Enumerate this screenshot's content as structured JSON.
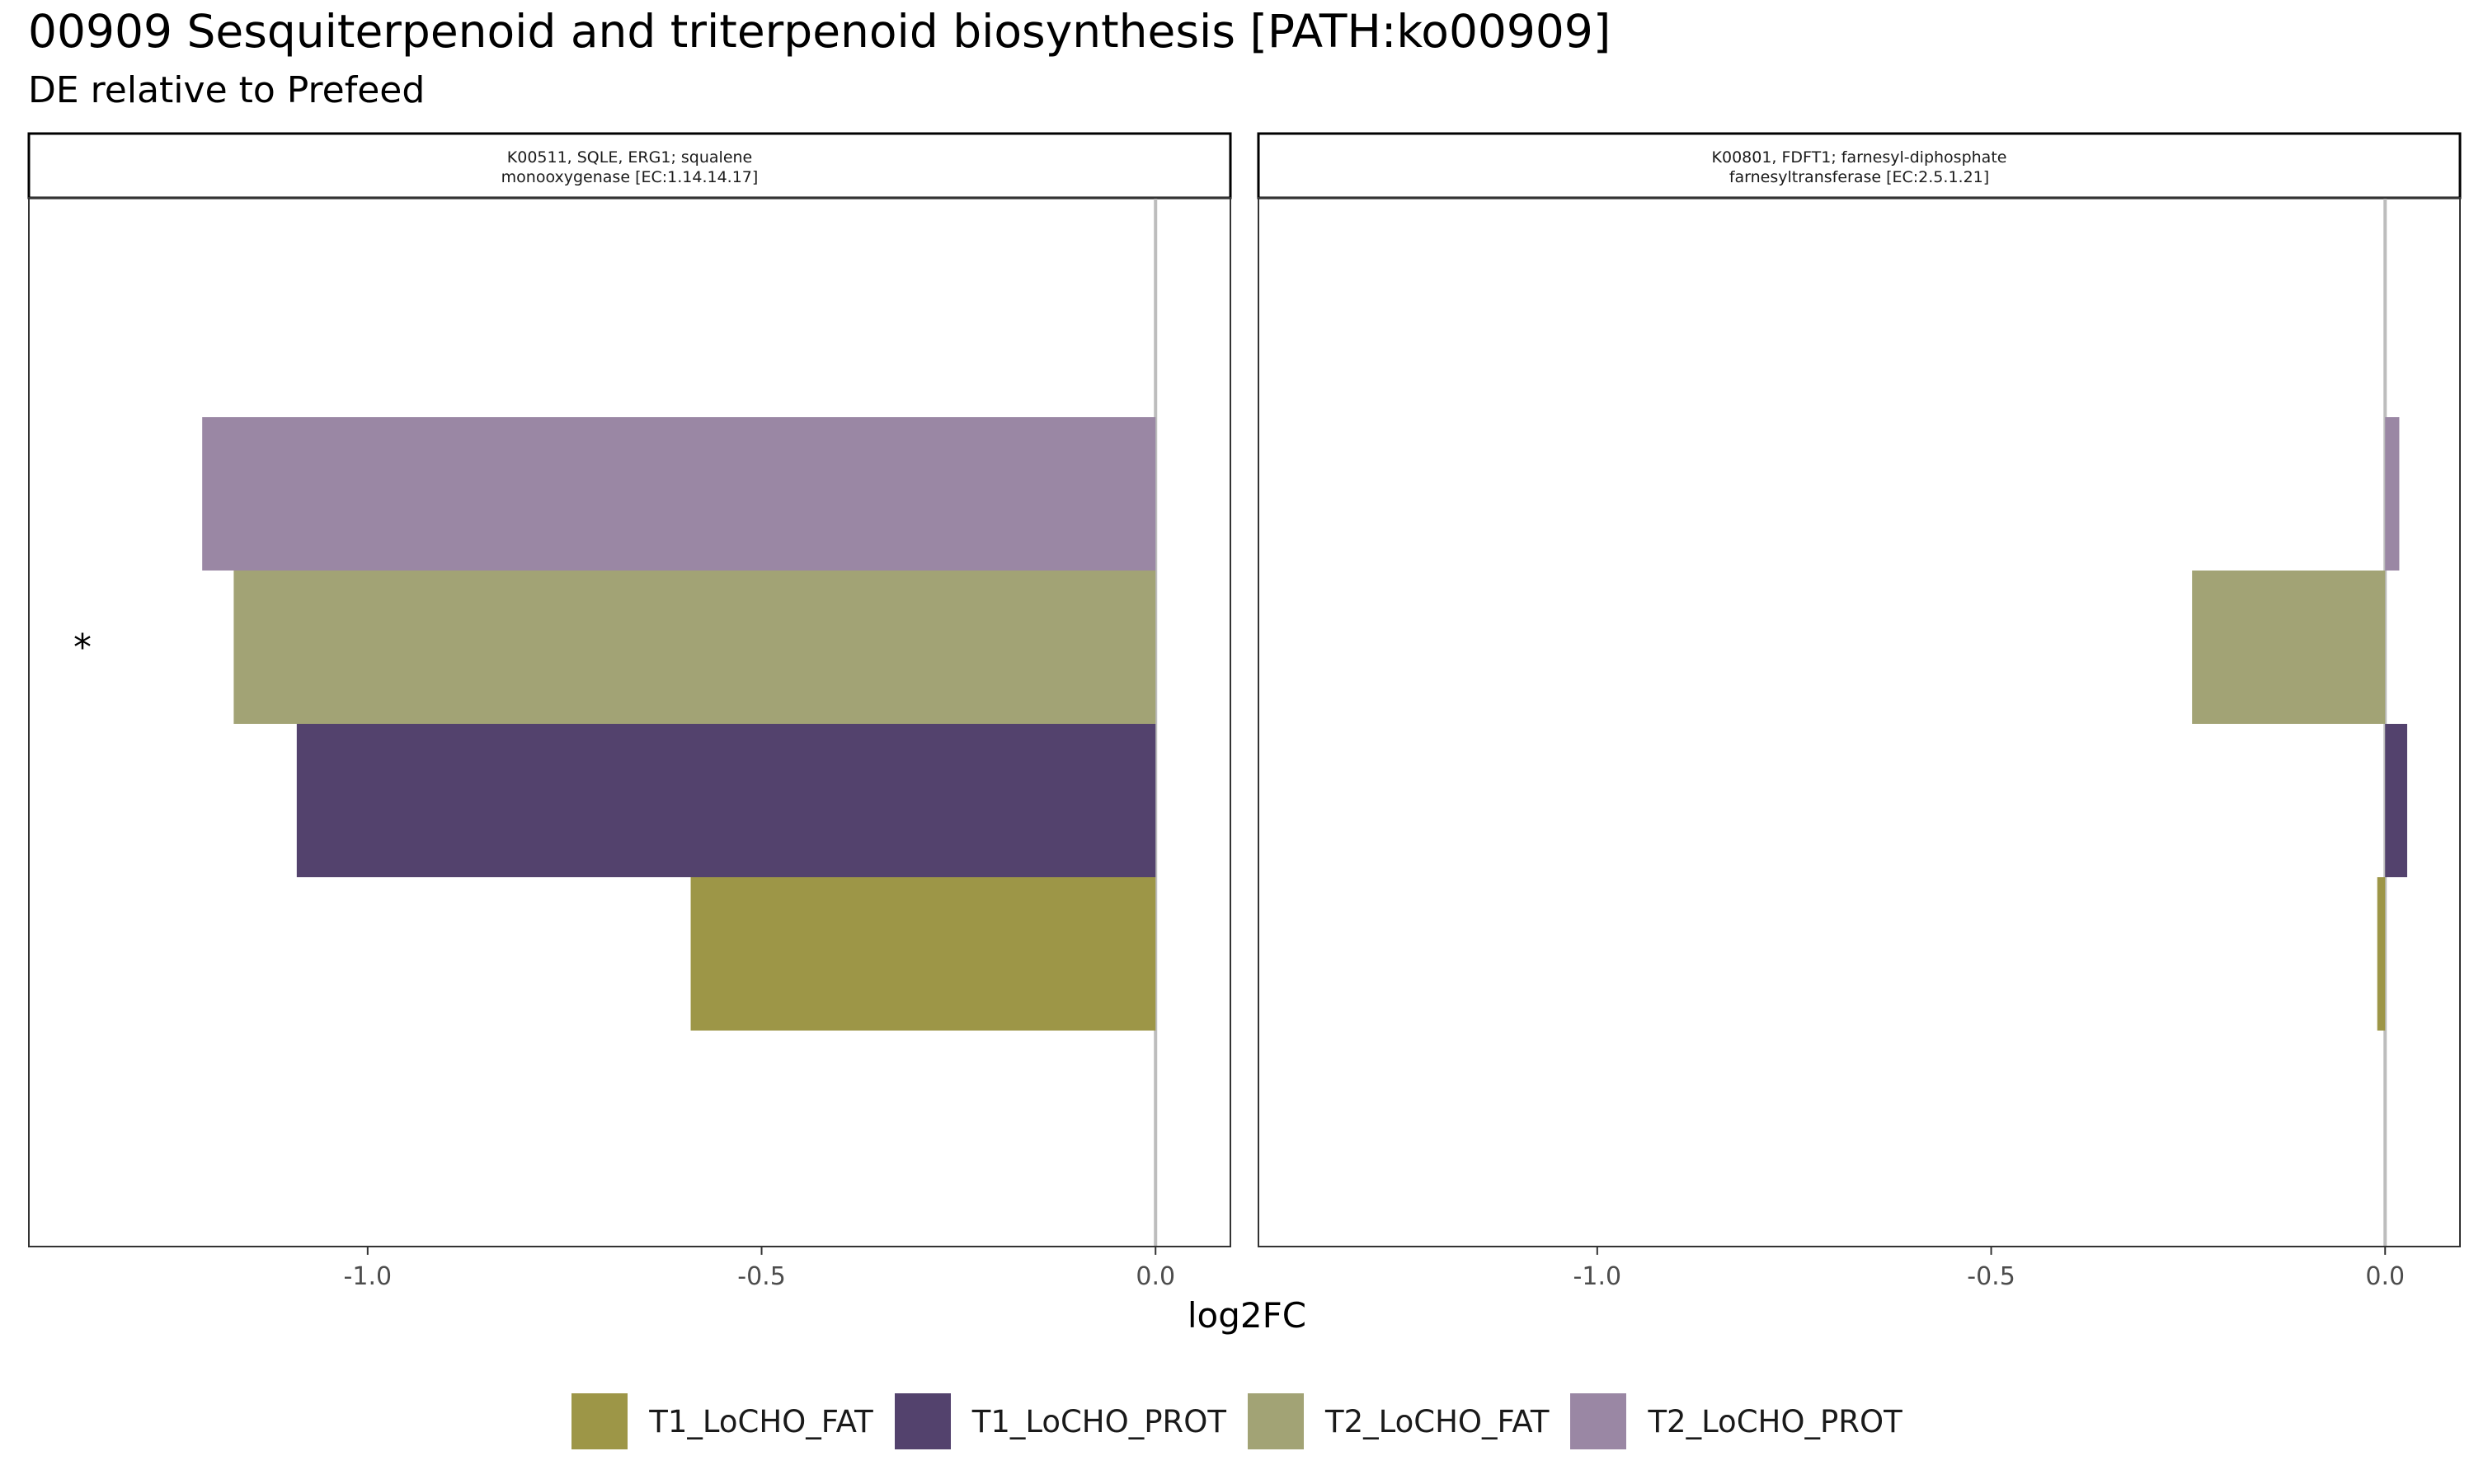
{
  "chart_data": {
    "type": "bar",
    "orientation": "horizontal",
    "title": "00909 Sesquiterpenoid and triterpenoid biosynthesis [PATH:ko00909]",
    "subtitle": "DE relative to Prefeed",
    "xlabel": "log2FC",
    "ylabel": "",
    "xlim": [
      -1.43,
      0.095
    ],
    "xticks": [
      -1.0,
      -0.5,
      0.0
    ],
    "xtick_labels": [
      "-1.0",
      "-0.5",
      "0.0"
    ],
    "grid": false,
    "legend_position": "bottom",
    "categories": [
      "T1_LoCHO_FAT",
      "T1_LoCHO_PROT",
      "T2_LoCHO_FAT",
      "T2_LoCHO_PROT"
    ],
    "colors": {
      "T1_LoCHO_FAT": "#9d9647",
      "T1_LoCHO_PROT": "#53426d",
      "T2_LoCHO_FAT": "#a2a375",
      "T2_LoCHO_PROT": "#9a87a4"
    },
    "panels": [
      {
        "strip_line1": "K00511, SQLE, ERG1; squalene",
        "strip_line2": "monooxygenase [EC:1.14.14.17]",
        "significance_marker": "*",
        "values": {
          "T1_LoCHO_FAT": -0.59,
          "T1_LoCHO_PROT": -1.09,
          "T2_LoCHO_FAT": -1.17,
          "T2_LoCHO_PROT": -1.21
        }
      },
      {
        "strip_line1": "K00801, FDFT1; farnesyl-diphosphate",
        "strip_line2": "farnesyltransferase [EC:2.5.1.21]",
        "significance_marker": "",
        "values": {
          "T1_LoCHO_FAT": -0.01,
          "T1_LoCHO_PROT": 0.028,
          "T2_LoCHO_FAT": -0.245,
          "T2_LoCHO_PROT": 0.018
        }
      }
    ]
  }
}
